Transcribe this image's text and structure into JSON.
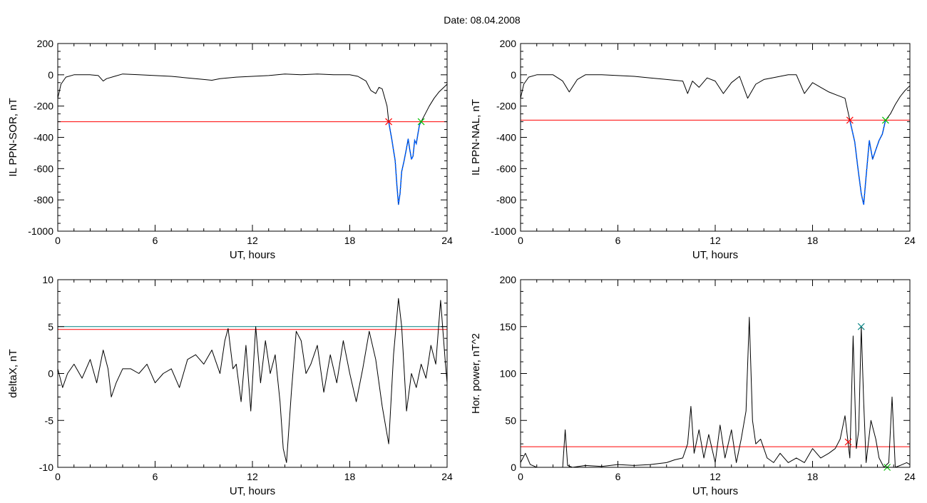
{
  "figure": {
    "title": "Date:  08.04.2008"
  },
  "chart_data": [
    {
      "type": "line",
      "xlabel": "UT, hours",
      "ylabel": "IL PPN-SOR, nT",
      "xlim": [
        0,
        24
      ],
      "ylim": [
        -1000,
        200
      ],
      "xticks": [
        0,
        6,
        12,
        18,
        24
      ],
      "yticks": [
        -1000,
        -800,
        -600,
        -400,
        -200,
        0,
        200
      ],
      "threshold_lines": [
        {
          "y": -300,
          "color": "#ff0000"
        }
      ],
      "markers": [
        {
          "x": 20.4,
          "y": -300,
          "color": "#ff0000",
          "symbol": "x"
        },
        {
          "x": 22.4,
          "y": -300,
          "color": "#00c000",
          "symbol": "x"
        }
      ],
      "highlight_range": {
        "x0": 20.4,
        "x1": 22.4,
        "color": "#0060ff"
      },
      "series": [
        {
          "color": "#000000",
          "x": [
            0,
            0.2,
            0.5,
            1,
            2,
            2.5,
            2.8,
            3,
            3.5,
            4,
            5,
            6,
            7,
            8,
            9,
            9.5,
            10,
            11,
            12,
            13,
            14,
            15,
            16,
            17,
            18,
            18.5,
            19,
            19.3,
            19.6,
            19.8,
            20,
            20.3,
            20.4,
            20.6,
            20.8,
            20.9,
            21,
            21.1,
            21.2,
            21.35,
            21.5,
            21.6,
            21.7,
            21.8,
            21.9,
            22.0,
            22.1,
            22.2,
            22.3,
            22.4,
            22.6,
            22.9,
            23.2,
            23.5,
            23.8,
            24
          ],
          "y": [
            -150,
            -60,
            -15,
            0,
            0,
            -5,
            -40,
            -25,
            -10,
            5,
            0,
            -5,
            -10,
            -20,
            -30,
            -35,
            -25,
            -15,
            -10,
            -5,
            5,
            0,
            5,
            0,
            0,
            -10,
            -40,
            -100,
            -120,
            -80,
            -90,
            -200,
            -300,
            -420,
            -550,
            -700,
            -830,
            -760,
            -620,
            -550,
            -470,
            -410,
            -480,
            -540,
            -520,
            -420,
            -440,
            -380,
            -320,
            -300,
            -260,
            -200,
            -150,
            -110,
            -80,
            -60
          ]
        }
      ]
    },
    {
      "type": "line",
      "xlabel": "UT, hours",
      "ylabel": "IL PPN-NAL, nT",
      "xlim": [
        0,
        24
      ],
      "ylim": [
        -1000,
        200
      ],
      "xticks": [
        0,
        6,
        12,
        18,
        24
      ],
      "yticks": [
        -1000,
        -800,
        -600,
        -400,
        -200,
        0,
        200
      ],
      "threshold_lines": [
        {
          "y": -290,
          "color": "#ff0000"
        }
      ],
      "markers": [
        {
          "x": 20.3,
          "y": -290,
          "color": "#ff0000",
          "symbol": "x"
        },
        {
          "x": 22.5,
          "y": -290,
          "color": "#00c000",
          "symbol": "x"
        }
      ],
      "highlight_range": {
        "x0": 20.3,
        "x1": 22.5,
        "color": "#0060ff"
      },
      "series": [
        {
          "color": "#000000",
          "x": [
            0,
            0.2,
            0.5,
            1,
            2,
            2.6,
            3,
            3.5,
            4,
            5,
            6,
            7,
            8,
            9,
            10,
            10.3,
            10.6,
            11,
            11.5,
            12,
            12.5,
            13,
            13.5,
            14,
            14.5,
            15,
            15.5,
            16,
            16.5,
            17,
            17.5,
            18,
            18.5,
            19,
            19.5,
            20,
            20.3,
            20.6,
            20.8,
            21,
            21.15,
            21.3,
            21.5,
            21.7,
            21.9,
            22.1,
            22.3,
            22.5,
            22.8,
            23.1,
            23.4,
            23.7,
            24
          ],
          "y": [
            -150,
            -60,
            -15,
            0,
            0,
            -40,
            -110,
            -30,
            0,
            0,
            -5,
            -10,
            -20,
            -30,
            -40,
            -120,
            -40,
            -80,
            -20,
            -40,
            -120,
            -50,
            -10,
            -150,
            -60,
            -30,
            -20,
            -10,
            0,
            0,
            -120,
            -50,
            -80,
            -110,
            -130,
            -150,
            -290,
            -430,
            -600,
            -760,
            -830,
            -650,
            -420,
            -540,
            -480,
            -420,
            -380,
            -290,
            -250,
            -190,
            -140,
            -100,
            -70
          ]
        }
      ]
    },
    {
      "type": "line",
      "xlabel": "UT, hours",
      "ylabel": "deltaX, nT",
      "xlim": [
        0,
        24
      ],
      "ylim": [
        -10,
        10
      ],
      "xticks": [
        0,
        6,
        12,
        18,
        24
      ],
      "yticks": [
        -10,
        -5,
        0,
        5,
        10
      ],
      "threshold_lines": [
        {
          "y": 5.0,
          "color": "#008080"
        },
        {
          "y": 4.7,
          "color": "#ff0000"
        }
      ],
      "markers": [],
      "series": [
        {
          "color": "#000000",
          "x": [
            0,
            0.3,
            0.6,
            1,
            1.5,
            2,
            2.4,
            2.8,
            3.1,
            3.3,
            3.6,
            4,
            4.5,
            5,
            5.5,
            6,
            6.5,
            7,
            7.5,
            8,
            8.5,
            9,
            9.5,
            10,
            10.3,
            10.5,
            10.8,
            11,
            11.3,
            11.6,
            11.9,
            12.2,
            12.5,
            12.8,
            13.1,
            13.4,
            13.7,
            13.9,
            14.1,
            14.4,
            14.7,
            15,
            15.3,
            15.6,
            16,
            16.4,
            16.8,
            17.2,
            17.6,
            18,
            18.4,
            18.8,
            19.2,
            19.6,
            20,
            20.4,
            20.7,
            21.0,
            21.2,
            21.5,
            21.8,
            22.1,
            22.4,
            22.7,
            23.0,
            23.3,
            23.6,
            23.9,
            24
          ],
          "y": [
            0.5,
            -1.5,
            0,
            1,
            -0.5,
            1.5,
            -1,
            2.5,
            0.5,
            -2.5,
            -1,
            0.5,
            0.5,
            0,
            1,
            -1,
            0,
            0.5,
            -1.5,
            1.5,
            2,
            1,
            2.5,
            0,
            3.5,
            4.8,
            0.5,
            1,
            -3,
            3,
            -4,
            5,
            -1,
            3.5,
            0,
            2,
            -3,
            -8,
            -9.5,
            -2,
            4.5,
            3.5,
            0,
            1,
            3,
            -2,
            2,
            -1,
            3.5,
            0,
            -3,
            0.5,
            4.5,
            1.5,
            -3.5,
            -7.5,
            2,
            8,
            5,
            -4,
            0,
            -1.5,
            1,
            -0.5,
            3,
            1,
            7.8,
            1,
            -1
          ]
        }
      ]
    },
    {
      "type": "line",
      "xlabel": "UT, hours",
      "ylabel": "Hor. power, nT^2",
      "xlim": [
        0,
        24
      ],
      "ylim": [
        0,
        200
      ],
      "xticks": [
        0,
        6,
        12,
        18,
        24
      ],
      "yticks": [
        0,
        50,
        100,
        150,
        200
      ],
      "threshold_lines": [
        {
          "y": 22,
          "color": "#ff0000"
        }
      ],
      "markers": [
        {
          "x": 20.2,
          "y": 27,
          "color": "#ff0000",
          "symbol": "x"
        },
        {
          "x": 21.0,
          "y": 150,
          "color": "#008080",
          "symbol": "x"
        },
        {
          "x": 22.6,
          "y": 0,
          "color": "#00c000",
          "symbol": "x"
        }
      ],
      "series": [
        {
          "color": "#000000",
          "x": [
            0,
            0.3,
            0.6,
            1,
            2,
            2.6,
            2.75,
            2.9,
            3.2,
            4,
            5,
            6,
            7,
            8,
            9,
            9.5,
            10,
            10.3,
            10.5,
            10.7,
            11,
            11.3,
            11.6,
            12,
            12.3,
            12.6,
            13,
            13.3,
            13.6,
            13.9,
            14.1,
            14.3,
            14.5,
            14.8,
            15.2,
            15.6,
            16,
            16.5,
            17,
            17.5,
            18,
            18.5,
            19,
            19.4,
            19.7,
            20,
            20.3,
            20.5,
            20.7,
            20.85,
            21.0,
            21.15,
            21.3,
            21.6,
            21.9,
            22.1,
            22.4,
            22.7,
            22.9,
            23.1,
            23.4,
            23.8,
            24
          ],
          "y": [
            5,
            15,
            3,
            0,
            0,
            0,
            40,
            2,
            0,
            2,
            1,
            3,
            2,
            3,
            5,
            8,
            10,
            25,
            65,
            15,
            40,
            10,
            35,
            5,
            45,
            10,
            40,
            5,
            30,
            60,
            160,
            50,
            25,
            30,
            10,
            5,
            15,
            5,
            10,
            5,
            20,
            10,
            15,
            20,
            30,
            55,
            10,
            140,
            20,
            40,
            150,
            70,
            5,
            50,
            30,
            10,
            0,
            5,
            75,
            0,
            2,
            5,
            3
          ]
        }
      ]
    }
  ]
}
